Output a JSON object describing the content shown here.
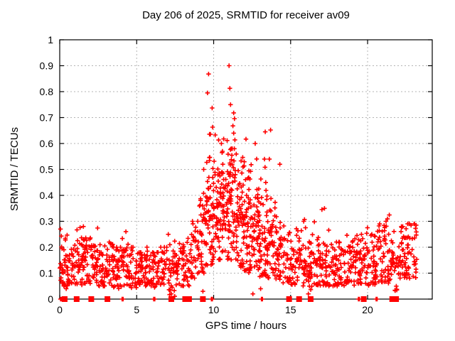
{
  "window": {
    "title": "Day 206 of 2025, SRMTID for receiver av09"
  },
  "colors": {
    "marker": "#ff0000",
    "grid": "#b4b4b4",
    "axis": "#000000",
    "background": "#ffffff",
    "text": "#000000"
  },
  "chart_data": {
    "type": "scatter",
    "title": "Day 206 of 2025, SRMTID for receiver av09",
    "xlabel": "GPS time / hours",
    "ylabel": "SRMTID / TECUs",
    "xlim": [
      0,
      24.2
    ],
    "ylim": [
      0,
      1
    ],
    "xticks": {
      "values": [
        0,
        5,
        10,
        15,
        20
      ],
      "labels": [
        "0",
        "5",
        "10",
        "15",
        "20"
      ]
    },
    "yticks": {
      "values": [
        0,
        0.1,
        0.2,
        0.3,
        0.4,
        0.5,
        0.6,
        0.7,
        0.8,
        0.9,
        1
      ],
      "labels": [
        "0",
        "0.1",
        "0.2",
        "0.3",
        "0.4",
        "0.5",
        "0.6",
        "0.7",
        "0.8",
        "0.9",
        "1"
      ]
    },
    "grid": true,
    "legend": "none",
    "marker": {
      "shape": "plus",
      "color": "#ff0000",
      "size": 7
    },
    "zero_marker": {
      "shape": "filled-square",
      "color": "#ff0000",
      "size": 8
    },
    "seed": 20625,
    "peak_points": [
      [
        11.0,
        0.9
      ],
      [
        9.67,
        0.868
      ],
      [
        11.05,
        0.813
      ],
      [
        9.6,
        0.795
      ],
      [
        11.1,
        0.75
      ],
      [
        9.9,
        0.737
      ],
      [
        11.3,
        0.718
      ],
      [
        11.35,
        0.696
      ],
      [
        11.25,
        0.668
      ],
      [
        9.93,
        0.663
      ],
      [
        13.7,
        0.652
      ],
      [
        13.35,
        0.645
      ],
      [
        9.73,
        0.636
      ],
      [
        9.79,
        0.636
      ],
      [
        11.3,
        0.64
      ],
      [
        10.1,
        0.633
      ],
      [
        11.38,
        0.614
      ],
      [
        12.7,
        0.6
      ],
      [
        10.5,
        0.6
      ],
      [
        10.55,
        0.565
      ],
      [
        12.1,
        0.617
      ],
      [
        13.3,
        0.54
      ],
      [
        13.62,
        0.54
      ],
      [
        14.3,
        0.52
      ],
      [
        9.35,
        0.5
      ],
      [
        17.2,
        0.35
      ],
      [
        15.9,
        0.307
      ],
      [
        19.6,
        0.25
      ],
      [
        21.2,
        0.3
      ],
      [
        22.6,
        0.29
      ],
      [
        1.54,
        0.28
      ],
      [
        0.05,
        0.27
      ],
      [
        2.46,
        0.274
      ],
      [
        15.85,
        0.3
      ],
      [
        7.05,
        0.25
      ],
      [
        4.3,
        0.26
      ]
    ],
    "low_points": [
      [
        7.25,
        0.02
      ],
      [
        7.3,
        0.045
      ],
      [
        16.15,
        0.02
      ],
      [
        16.22,
        0.05
      ],
      [
        21.9,
        0.035
      ],
      [
        9.3,
        0.03
      ],
      [
        0.42,
        0.04
      ],
      [
        12.55,
        0.02
      ],
      [
        13.05,
        0.04
      ]
    ],
    "zero_flag_squares_hours": [
      0.32,
      1.1,
      2.05,
      3.1,
      7.25,
      8.15,
      8.4,
      9.3,
      14.9,
      15.55,
      16.3,
      19.75,
      21.6,
      21.85
    ],
    "zero_flag_plus_hours": [
      0.05,
      0.1,
      4.05,
      4.12,
      6.1,
      6.18,
      9.85,
      9.92,
      13.1,
      13.17,
      19.4,
      19.47,
      20.55,
      20.62
    ],
    "density_profile_bins": {
      "format": [
        "h_start",
        "h_end",
        "count",
        "y_min",
        "y_mode",
        "y_spread",
        "tail_fraction",
        "y_max"
      ],
      "bins": [
        [
          0,
          0.5,
          34,
          0.05,
          0.125,
          0.08,
          0.1,
          0.27
        ],
        [
          0.5,
          1,
          32,
          0.06,
          0.12,
          0.07,
          0.08,
          0.22
        ],
        [
          1,
          1.5,
          34,
          0.05,
          0.13,
          0.08,
          0.1,
          0.28
        ],
        [
          1.5,
          2,
          34,
          0.06,
          0.14,
          0.08,
          0.1,
          0.25
        ],
        [
          2,
          2.5,
          32,
          0.05,
          0.13,
          0.08,
          0.1,
          0.27
        ],
        [
          2.5,
          3,
          30,
          0.05,
          0.115,
          0.07,
          0.08,
          0.21
        ],
        [
          3,
          3.5,
          30,
          0.05,
          0.12,
          0.07,
          0.08,
          0.22
        ],
        [
          3.5,
          4,
          30,
          0.04,
          0.11,
          0.07,
          0.08,
          0.2
        ],
        [
          4,
          4.5,
          32,
          0.05,
          0.12,
          0.07,
          0.1,
          0.25
        ],
        [
          4.5,
          5,
          30,
          0.04,
          0.11,
          0.07,
          0.08,
          0.2
        ],
        [
          5,
          5.5,
          30,
          0.05,
          0.11,
          0.07,
          0.06,
          0.18
        ],
        [
          5.5,
          6,
          30,
          0.05,
          0.11,
          0.07,
          0.08,
          0.2
        ],
        [
          6,
          6.5,
          28,
          0.04,
          0.105,
          0.07,
          0.06,
          0.18
        ],
        [
          6.5,
          7,
          28,
          0.05,
          0.11,
          0.07,
          0.08,
          0.2
        ],
        [
          7,
          7.5,
          28,
          0.01,
          0.1,
          0.08,
          0.1,
          0.25
        ],
        [
          7.5,
          8,
          28,
          0.05,
          0.12,
          0.07,
          0.08,
          0.22
        ],
        [
          8,
          8.5,
          28,
          0.05,
          0.13,
          0.08,
          0.1,
          0.25
        ],
        [
          8.5,
          9,
          32,
          0.08,
          0.16,
          0.09,
          0.12,
          0.3
        ],
        [
          9,
          9.5,
          40,
          0.1,
          0.22,
          0.12,
          0.15,
          0.45
        ],
        [
          9.5,
          10,
          52,
          0.12,
          0.3,
          0.14,
          0.2,
          0.55
        ],
        [
          10,
          10.5,
          55,
          0.15,
          0.32,
          0.15,
          0.18,
          0.63
        ],
        [
          10.5,
          11,
          55,
          0.15,
          0.33,
          0.15,
          0.18,
          0.62
        ],
        [
          11,
          11.5,
          55,
          0.15,
          0.35,
          0.16,
          0.2,
          0.58
        ],
        [
          11.5,
          12,
          55,
          0.12,
          0.3,
          0.15,
          0.18,
          0.6
        ],
        [
          12,
          12.5,
          55,
          0.1,
          0.27,
          0.14,
          0.15,
          0.55
        ],
        [
          12.5,
          13,
          50,
          0.1,
          0.25,
          0.13,
          0.15,
          0.6
        ],
        [
          13,
          13.5,
          46,
          0.08,
          0.22,
          0.13,
          0.15,
          0.55
        ],
        [
          13.5,
          14,
          40,
          0.08,
          0.2,
          0.12,
          0.12,
          0.55
        ],
        [
          14,
          14.5,
          36,
          0.07,
          0.17,
          0.1,
          0.1,
          0.45
        ],
        [
          14.5,
          15,
          32,
          0.06,
          0.15,
          0.09,
          0.08,
          0.3
        ],
        [
          15,
          15.5,
          30,
          0.05,
          0.14,
          0.08,
          0.08,
          0.3
        ],
        [
          15.5,
          16,
          30,
          0.05,
          0.13,
          0.08,
          0.08,
          0.28
        ],
        [
          16,
          16.5,
          30,
          0.01,
          0.12,
          0.08,
          0.08,
          0.25
        ],
        [
          16.5,
          17,
          30,
          0.05,
          0.13,
          0.08,
          0.1,
          0.3
        ],
        [
          17,
          17.5,
          32,
          0.05,
          0.13,
          0.08,
          0.1,
          0.35
        ],
        [
          17.5,
          18,
          30,
          0.05,
          0.12,
          0.07,
          0.08,
          0.22
        ],
        [
          18,
          18.5,
          30,
          0.05,
          0.12,
          0.07,
          0.08,
          0.22
        ],
        [
          18.5,
          19,
          30,
          0.06,
          0.13,
          0.07,
          0.08,
          0.25
        ],
        [
          19,
          19.5,
          30,
          0.05,
          0.13,
          0.08,
          0.1,
          0.28
        ],
        [
          19.5,
          20,
          32,
          0.06,
          0.14,
          0.08,
          0.1,
          0.3
        ],
        [
          20,
          20.5,
          30,
          0.05,
          0.13,
          0.08,
          0.08,
          0.25
        ],
        [
          20.5,
          21,
          32,
          0.06,
          0.15,
          0.09,
          0.1,
          0.3
        ],
        [
          21,
          21.5,
          32,
          0.06,
          0.16,
          0.09,
          0.1,
          0.33
        ],
        [
          21.5,
          22,
          30,
          0.03,
          0.13,
          0.08,
          0.08,
          0.27
        ],
        [
          22,
          22.5,
          36,
          0.08,
          0.16,
          0.08,
          0.1,
          0.28
        ],
        [
          22.5,
          23.2,
          42,
          0.08,
          0.17,
          0.08,
          0.1,
          0.29
        ]
      ]
    }
  }
}
